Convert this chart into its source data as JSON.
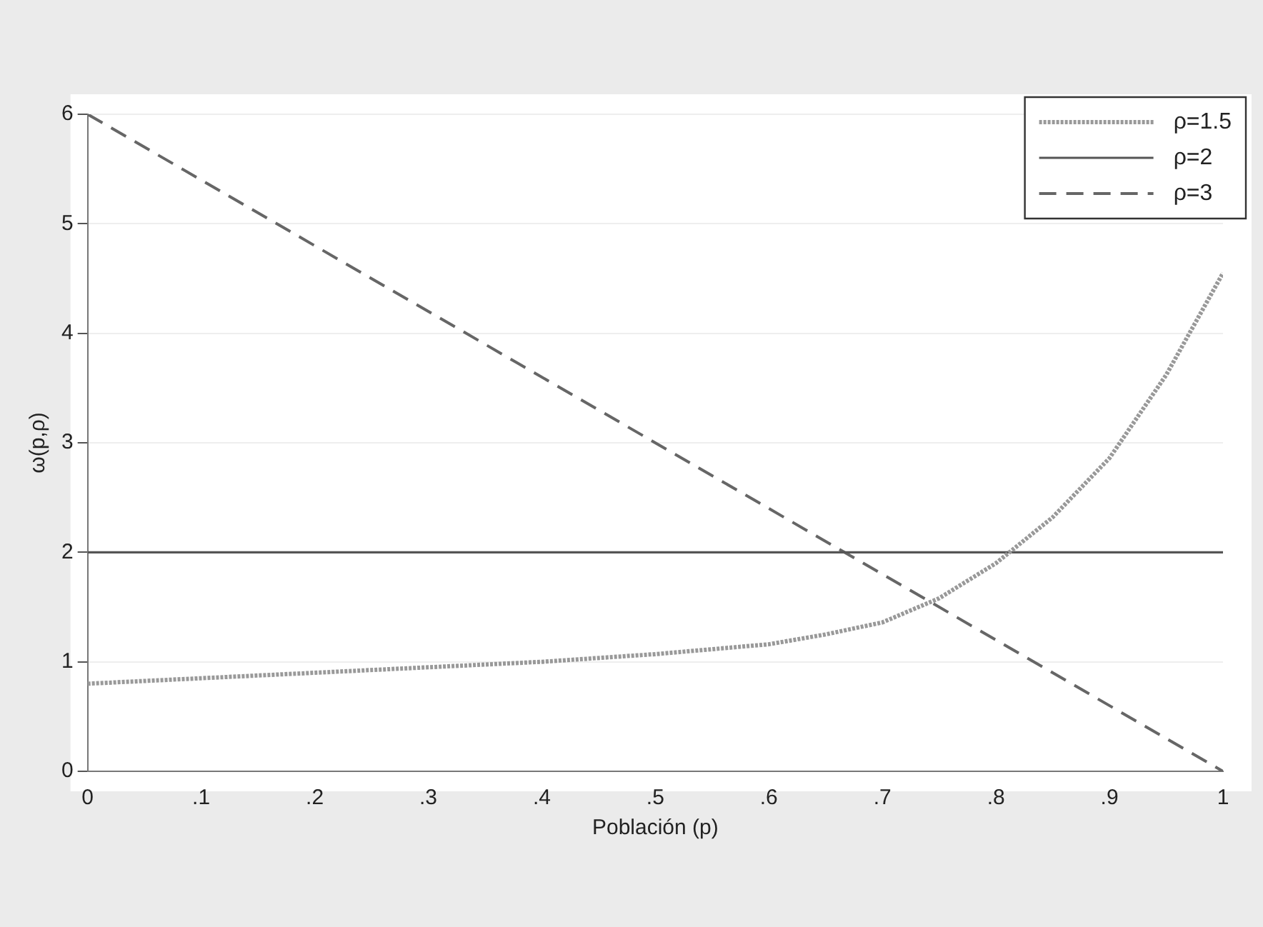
{
  "chart_data": {
    "type": "line",
    "xlabel": "Población (p)",
    "ylabel": "ω(p,ρ)",
    "xlim": [
      0,
      1
    ],
    "ylim": [
      0,
      6
    ],
    "xticks": [
      0,
      {
        "value": 0.1,
        "label": ".1"
      },
      {
        "value": 0.2,
        "label": ".2"
      },
      {
        "value": 0.3,
        "label": ".3"
      },
      {
        "value": 0.4,
        "label": ".4"
      },
      {
        "value": 0.5,
        "label": ".5"
      },
      {
        "value": 0.6,
        "label": ".6"
      },
      {
        "value": 0.7,
        "label": ".7"
      },
      {
        "value": 0.8,
        "label": ".8"
      },
      {
        "value": 0.9,
        "label": ".9"
      },
      1
    ],
    "yticks": [
      0,
      1,
      2,
      3,
      4,
      5,
      6
    ],
    "grid": "y",
    "legend": "top right",
    "marker": "none",
    "series": [
      {
        "name": "ρ=1.5",
        "color": "#999999",
        "line_style": "dotted",
        "x": [
          0,
          0.1,
          0.2,
          0.3,
          0.4,
          0.5,
          0.6,
          0.65,
          0.7,
          0.75,
          0.8,
          0.85,
          0.9,
          0.95,
          1
        ],
        "values": [
          0.8,
          0.85,
          0.9,
          0.95,
          1.0,
          1.07,
          1.16,
          1.25,
          1.36,
          1.58,
          1.9,
          2.32,
          2.86,
          3.62,
          4.55
        ]
      },
      {
        "name": "ρ=2",
        "color": "#555555",
        "line_style": "solid",
        "x": [
          0,
          1
        ],
        "values": [
          2,
          2
        ]
      },
      {
        "name": "ρ=3",
        "color": "#666666",
        "line_style": "dashed",
        "x": [
          0,
          1
        ],
        "values": [
          6,
          0
        ]
      }
    ]
  }
}
